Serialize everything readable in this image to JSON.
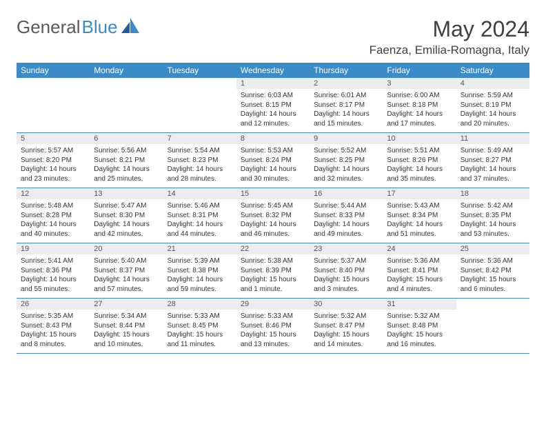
{
  "logo": {
    "text1": "General",
    "text2": "Blue"
  },
  "title": "May 2024",
  "location": "Faenza, Emilia-Romagna, Italy",
  "colors": {
    "header_bg": "#3b8bc9",
    "header_text": "#ffffff",
    "daynum_bg": "#ececec",
    "grid_line": "#3b8bc9",
    "body_text": "#333333",
    "title_text": "#404040",
    "logo_gray": "#5a5a5a",
    "logo_blue": "#3b8bc9",
    "page_bg": "#ffffff"
  },
  "typography": {
    "month_title_fontsize": 32,
    "location_fontsize": 17,
    "weekday_fontsize": 12,
    "daynum_fontsize": 11,
    "cell_fontsize": 10
  },
  "weekdays": [
    "Sunday",
    "Monday",
    "Tuesday",
    "Wednesday",
    "Thursday",
    "Friday",
    "Saturday"
  ],
  "weeks": [
    [
      {
        "empty": true
      },
      {
        "empty": true
      },
      {
        "empty": true
      },
      {
        "day": "1",
        "sunrise": "Sunrise: 6:03 AM",
        "sunset": "Sunset: 8:15 PM",
        "daylight": "Daylight: 14 hours and 12 minutes."
      },
      {
        "day": "2",
        "sunrise": "Sunrise: 6:01 AM",
        "sunset": "Sunset: 8:17 PM",
        "daylight": "Daylight: 14 hours and 15 minutes."
      },
      {
        "day": "3",
        "sunrise": "Sunrise: 6:00 AM",
        "sunset": "Sunset: 8:18 PM",
        "daylight": "Daylight: 14 hours and 17 minutes."
      },
      {
        "day": "4",
        "sunrise": "Sunrise: 5:59 AM",
        "sunset": "Sunset: 8:19 PM",
        "daylight": "Daylight: 14 hours and 20 minutes."
      }
    ],
    [
      {
        "day": "5",
        "sunrise": "Sunrise: 5:57 AM",
        "sunset": "Sunset: 8:20 PM",
        "daylight": "Daylight: 14 hours and 23 minutes."
      },
      {
        "day": "6",
        "sunrise": "Sunrise: 5:56 AM",
        "sunset": "Sunset: 8:21 PM",
        "daylight": "Daylight: 14 hours and 25 minutes."
      },
      {
        "day": "7",
        "sunrise": "Sunrise: 5:54 AM",
        "sunset": "Sunset: 8:23 PM",
        "daylight": "Daylight: 14 hours and 28 minutes."
      },
      {
        "day": "8",
        "sunrise": "Sunrise: 5:53 AM",
        "sunset": "Sunset: 8:24 PM",
        "daylight": "Daylight: 14 hours and 30 minutes."
      },
      {
        "day": "9",
        "sunrise": "Sunrise: 5:52 AM",
        "sunset": "Sunset: 8:25 PM",
        "daylight": "Daylight: 14 hours and 32 minutes."
      },
      {
        "day": "10",
        "sunrise": "Sunrise: 5:51 AM",
        "sunset": "Sunset: 8:26 PM",
        "daylight": "Daylight: 14 hours and 35 minutes."
      },
      {
        "day": "11",
        "sunrise": "Sunrise: 5:49 AM",
        "sunset": "Sunset: 8:27 PM",
        "daylight": "Daylight: 14 hours and 37 minutes."
      }
    ],
    [
      {
        "day": "12",
        "sunrise": "Sunrise: 5:48 AM",
        "sunset": "Sunset: 8:28 PM",
        "daylight": "Daylight: 14 hours and 40 minutes."
      },
      {
        "day": "13",
        "sunrise": "Sunrise: 5:47 AM",
        "sunset": "Sunset: 8:30 PM",
        "daylight": "Daylight: 14 hours and 42 minutes."
      },
      {
        "day": "14",
        "sunrise": "Sunrise: 5:46 AM",
        "sunset": "Sunset: 8:31 PM",
        "daylight": "Daylight: 14 hours and 44 minutes."
      },
      {
        "day": "15",
        "sunrise": "Sunrise: 5:45 AM",
        "sunset": "Sunset: 8:32 PM",
        "daylight": "Daylight: 14 hours and 46 minutes."
      },
      {
        "day": "16",
        "sunrise": "Sunrise: 5:44 AM",
        "sunset": "Sunset: 8:33 PM",
        "daylight": "Daylight: 14 hours and 49 minutes."
      },
      {
        "day": "17",
        "sunrise": "Sunrise: 5:43 AM",
        "sunset": "Sunset: 8:34 PM",
        "daylight": "Daylight: 14 hours and 51 minutes."
      },
      {
        "day": "18",
        "sunrise": "Sunrise: 5:42 AM",
        "sunset": "Sunset: 8:35 PM",
        "daylight": "Daylight: 14 hours and 53 minutes."
      }
    ],
    [
      {
        "day": "19",
        "sunrise": "Sunrise: 5:41 AM",
        "sunset": "Sunset: 8:36 PM",
        "daylight": "Daylight: 14 hours and 55 minutes."
      },
      {
        "day": "20",
        "sunrise": "Sunrise: 5:40 AM",
        "sunset": "Sunset: 8:37 PM",
        "daylight": "Daylight: 14 hours and 57 minutes."
      },
      {
        "day": "21",
        "sunrise": "Sunrise: 5:39 AM",
        "sunset": "Sunset: 8:38 PM",
        "daylight": "Daylight: 14 hours and 59 minutes."
      },
      {
        "day": "22",
        "sunrise": "Sunrise: 5:38 AM",
        "sunset": "Sunset: 8:39 PM",
        "daylight": "Daylight: 15 hours and 1 minute."
      },
      {
        "day": "23",
        "sunrise": "Sunrise: 5:37 AM",
        "sunset": "Sunset: 8:40 PM",
        "daylight": "Daylight: 15 hours and 3 minutes."
      },
      {
        "day": "24",
        "sunrise": "Sunrise: 5:36 AM",
        "sunset": "Sunset: 8:41 PM",
        "daylight": "Daylight: 15 hours and 4 minutes."
      },
      {
        "day": "25",
        "sunrise": "Sunrise: 5:36 AM",
        "sunset": "Sunset: 8:42 PM",
        "daylight": "Daylight: 15 hours and 6 minutes."
      }
    ],
    [
      {
        "day": "26",
        "sunrise": "Sunrise: 5:35 AM",
        "sunset": "Sunset: 8:43 PM",
        "daylight": "Daylight: 15 hours and 8 minutes."
      },
      {
        "day": "27",
        "sunrise": "Sunrise: 5:34 AM",
        "sunset": "Sunset: 8:44 PM",
        "daylight": "Daylight: 15 hours and 10 minutes."
      },
      {
        "day": "28",
        "sunrise": "Sunrise: 5:33 AM",
        "sunset": "Sunset: 8:45 PM",
        "daylight": "Daylight: 15 hours and 11 minutes."
      },
      {
        "day": "29",
        "sunrise": "Sunrise: 5:33 AM",
        "sunset": "Sunset: 8:46 PM",
        "daylight": "Daylight: 15 hours and 13 minutes."
      },
      {
        "day": "30",
        "sunrise": "Sunrise: 5:32 AM",
        "sunset": "Sunset: 8:47 PM",
        "daylight": "Daylight: 15 hours and 14 minutes."
      },
      {
        "day": "31",
        "sunrise": "Sunrise: 5:32 AM",
        "sunset": "Sunset: 8:48 PM",
        "daylight": "Daylight: 15 hours and 16 minutes."
      },
      {
        "empty": true
      }
    ]
  ]
}
